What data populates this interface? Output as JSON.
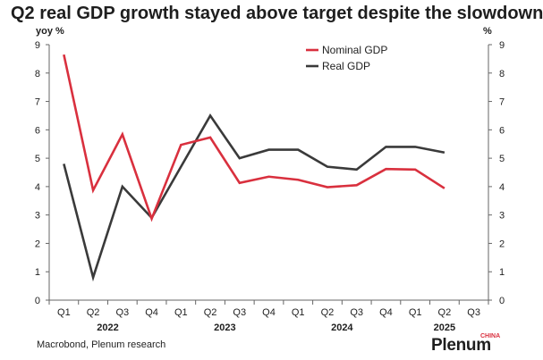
{
  "chart_data": {
    "type": "line",
    "title": "Q2 real GDP growth stayed above target despite the slowdown",
    "ylabel_left": "yoy %",
    "ylabel_right": "%",
    "ylim": [
      0,
      9
    ],
    "yticks": [
      "0",
      "1",
      "2",
      "3",
      "4",
      "5",
      "6",
      "7",
      "8",
      "9"
    ],
    "categories": [
      "Q1",
      "Q2",
      "Q3",
      "Q4",
      "Q1",
      "Q2",
      "Q3",
      "Q4",
      "Q1",
      "Q2",
      "Q3",
      "Q4",
      "Q1",
      "Q2",
      "Q3"
    ],
    "years": [
      {
        "label": "2022",
        "span": [
          0,
          3
        ]
      },
      {
        "label": "2023",
        "span": [
          4,
          7
        ]
      },
      {
        "label": "2024",
        "span": [
          8,
          11
        ]
      },
      {
        "label": "2025",
        "span": [
          12,
          14
        ]
      }
    ],
    "series": [
      {
        "name": "Nominal GDP",
        "color": "#d9303e",
        "values": [
          8.65,
          3.87,
          5.84,
          2.87,
          5.47,
          5.73,
          4.13,
          4.35,
          4.24,
          3.98,
          4.05,
          4.62,
          4.6,
          3.94,
          null
        ]
      },
      {
        "name": "Real GDP",
        "color": "#3a3a3a",
        "values": [
          4.8,
          0.8,
          4.0,
          2.9,
          4.7,
          6.5,
          5.0,
          5.3,
          5.3,
          4.7,
          4.6,
          5.4,
          5.4,
          5.2,
          null
        ]
      }
    ],
    "legend_position": "top-right",
    "grid": false
  },
  "footer": {
    "source": "Macrobond, Plenum research",
    "brand": "Plenum",
    "brand_sup": "CHINA"
  }
}
